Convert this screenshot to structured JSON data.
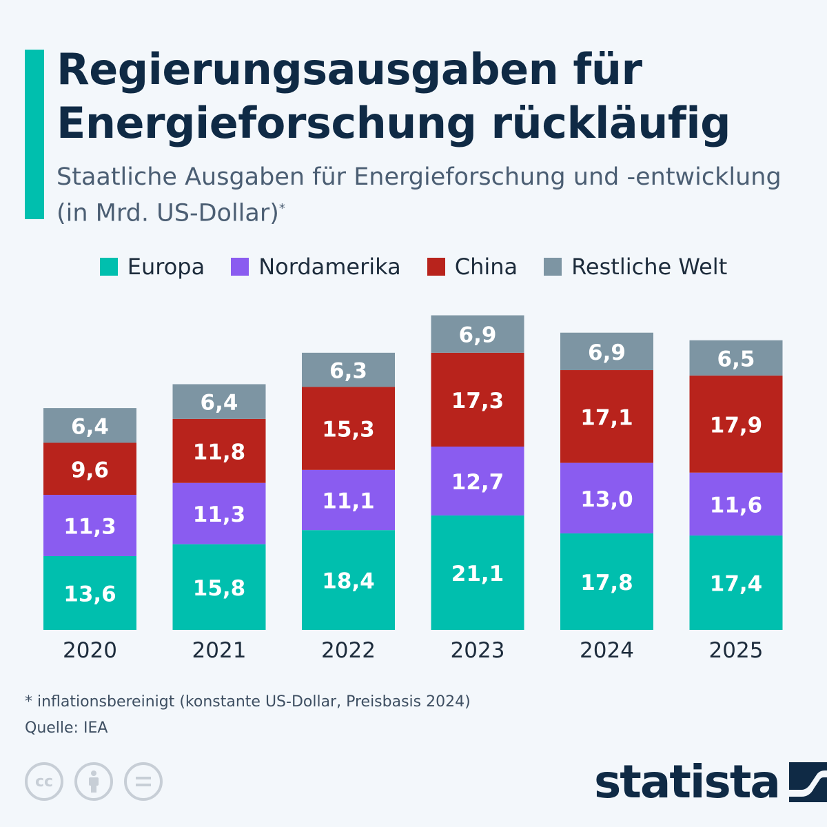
{
  "title": "Regierungsausgaben für Energieforschung rückläufig",
  "title_line1": "Regierungsausgaben für",
  "title_line2": "Energieforschung rückläufig",
  "subtitle": "Staatliche Ausgaben für Energieforschung und -entwicklung (in Mrd. US-Dollar)",
  "subtitle_mark": "*",
  "footnote": "* inflationsbereinigt (konstante US-Dollar, Preisbasis 2024)",
  "source": "Quelle: IEA",
  "logo": "statista",
  "chart_data": {
    "type": "bar",
    "stacked": true,
    "categories": [
      "2020",
      "2021",
      "2022",
      "2023",
      "2024",
      "2025"
    ],
    "series": [
      {
        "name": "Europa",
        "color": "#00bfae",
        "values": [
          13.6,
          15.8,
          18.4,
          21.1,
          17.8,
          17.4
        ],
        "labels": [
          "13,6",
          "15,8",
          "18,4",
          "21,1",
          "17,8",
          "17,4"
        ]
      },
      {
        "name": "Nordamerika",
        "color": "#8a5cf0",
        "values": [
          11.3,
          11.3,
          11.1,
          12.7,
          13.0,
          11.6
        ],
        "labels": [
          "11,3",
          "11,3",
          "11,1",
          "12,7",
          "13,0",
          "11,6"
        ]
      },
      {
        "name": "China",
        "color": "#b8231c",
        "values": [
          9.6,
          11.8,
          15.3,
          17.3,
          17.1,
          17.9
        ],
        "labels": [
          "9,6",
          "11,8",
          "15,3",
          "17,3",
          "17,1",
          "17,9"
        ]
      },
      {
        "name": "Restliche Welt",
        "color": "#7d95a3",
        "values": [
          6.4,
          6.4,
          6.3,
          6.9,
          6.9,
          6.5
        ],
        "labels": [
          "6,4",
          "6,4",
          "6,3",
          "6,9",
          "6,9",
          "6,5"
        ]
      }
    ],
    "legend": "top-center",
    "grid": false,
    "y_axis_visible": false
  }
}
